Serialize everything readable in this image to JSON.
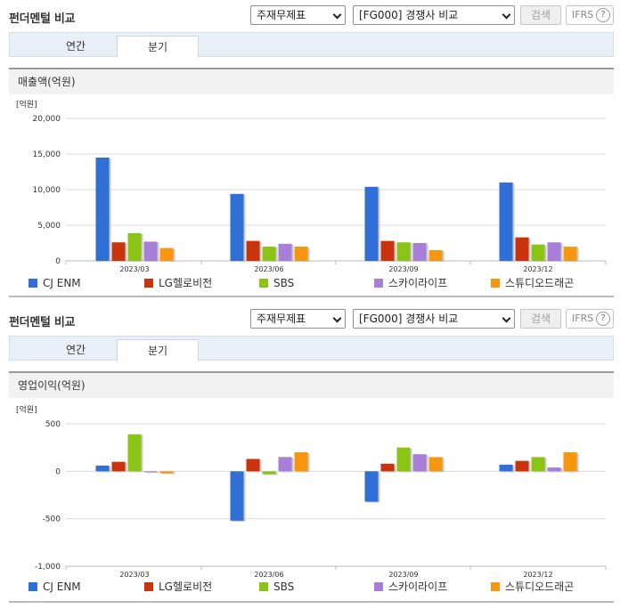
{
  "sections": [
    {
      "title": "펀더멘털 비교",
      "select_main": "주재무제표",
      "select_comp": "[FG000] 경쟁사 비교",
      "search_label": "검색",
      "ifrs_label": "IFRS",
      "ifrs_help": "?",
      "tab_annual": "연간",
      "tab_quarter": "분기",
      "chart_title": "매출액(억원)",
      "unit_label": "[억원]"
    },
    {
      "title": "펀더멘털 비교",
      "select_main": "주재무제표",
      "select_comp": "[FG000] 경쟁사 비교",
      "search_label": "검색",
      "ifrs_label": "IFRS",
      "ifrs_help": "?",
      "tab_annual": "연간",
      "tab_quarter": "분기",
      "chart_title": "영업이익(억원)",
      "unit_label": "[억원]"
    }
  ],
  "chart_data": [
    {
      "type": "bar",
      "title": "매출액(억원)",
      "ylabel": "[억원]",
      "ylim": [
        0,
        20000
      ],
      "yticks": [
        0,
        5000,
        10000,
        15000,
        20000
      ],
      "ytick_labels": [
        "0",
        "5,000",
        "10,000",
        "15,000",
        "20,000"
      ],
      "categories": [
        "2023/03",
        "2023/06",
        "2023/09",
        "2023/12"
      ],
      "series": [
        {
          "name": "CJ ENM",
          "color": "#2f6fd6",
          "values": [
            14500,
            9400,
            10400,
            11000
          ]
        },
        {
          "name": "LG헬로비전",
          "color": "#c9340e",
          "values": [
            2600,
            2800,
            2800,
            3300
          ]
        },
        {
          "name": "SBS",
          "color": "#8ac416",
          "values": [
            3900,
            2000,
            2600,
            2300
          ]
        },
        {
          "name": "스카이라이프",
          "color": "#a77fd8",
          "values": [
            2700,
            2400,
            2500,
            2600
          ]
        },
        {
          "name": "스튜디오드래곤",
          "color": "#f7960f",
          "values": [
            1800,
            2000,
            1500,
            2000
          ]
        }
      ],
      "grid": true,
      "legend": "bottom"
    },
    {
      "type": "bar",
      "title": "영업이익(억원)",
      "ylabel": "[억원]",
      "ylim": [
        -1000,
        500
      ],
      "yticks": [
        -1000,
        -500,
        0,
        500
      ],
      "ytick_labels": [
        "-1,000",
        "-500",
        "0",
        "500"
      ],
      "categories": [
        "2023/03",
        "2023/06",
        "2023/09",
        "2023/12"
      ],
      "series": [
        {
          "name": "CJ ENM",
          "color": "#2f6fd6",
          "values": [
            60,
            -520,
            -320,
            70
          ]
        },
        {
          "name": "LG헬로비전",
          "color": "#c9340e",
          "values": [
            100,
            130,
            80,
            110
          ]
        },
        {
          "name": "SBS",
          "color": "#8ac416",
          "values": [
            390,
            -30,
            250,
            150
          ]
        },
        {
          "name": "스카이라이프",
          "color": "#a77fd8",
          "values": [
            0,
            150,
            180,
            40
          ]
        },
        {
          "name": "스튜디오드래곤",
          "color": "#f7960f",
          "values": [
            -20,
            200,
            150,
            200
          ]
        }
      ],
      "grid": true,
      "legend": "bottom"
    }
  ]
}
